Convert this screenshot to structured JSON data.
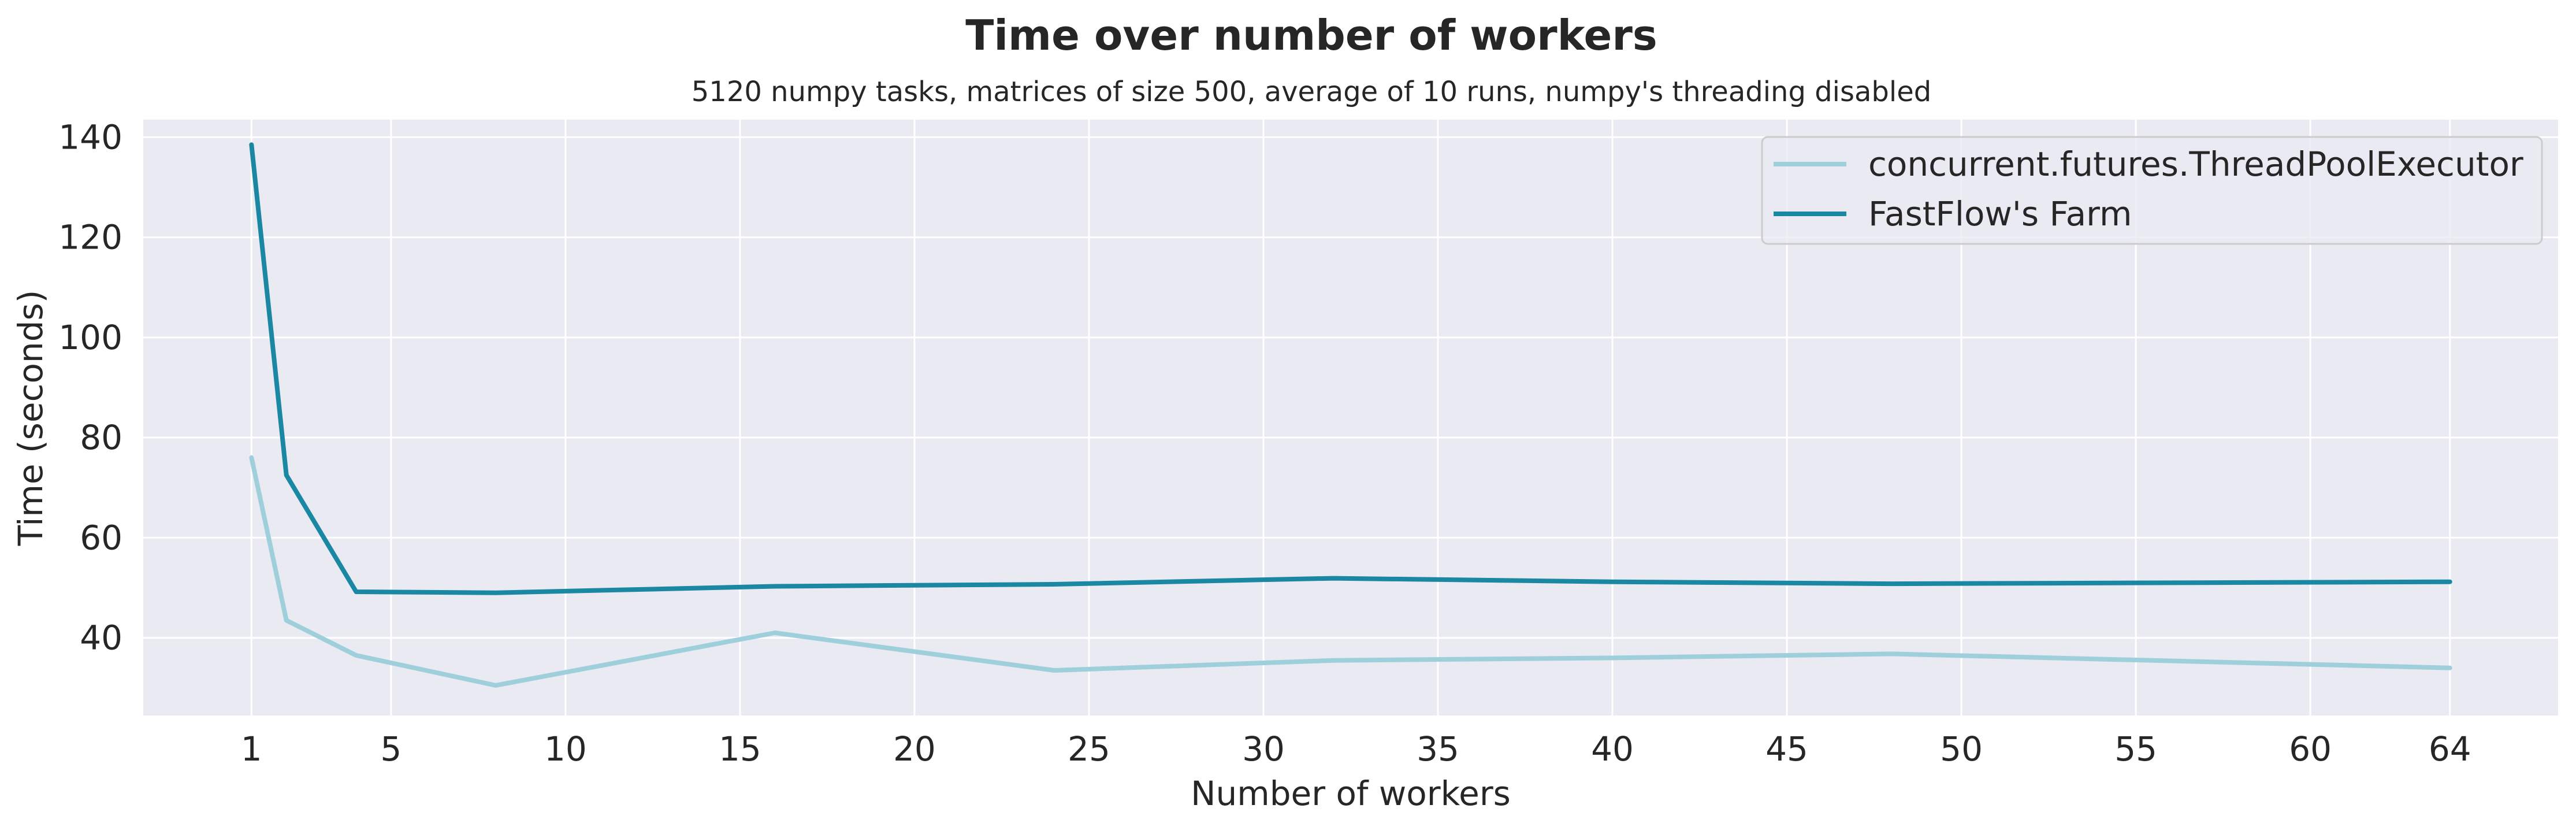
{
  "chart_data": {
    "type": "line",
    "title": "Time over number of workers",
    "subtitle": "5120 numpy tasks, matrices of size 500, average of 10 runs, numpy's threading disabled",
    "xlabel": "Number of workers",
    "ylabel": "Time (seconds)",
    "xlim": [
      -2.1,
      67.1
    ],
    "ylim": [
      24.5,
      143.5
    ],
    "xticks": [
      1,
      5,
      10,
      15,
      20,
      25,
      30,
      35,
      40,
      45,
      50,
      55,
      60,
      64
    ],
    "yticks": [
      40,
      60,
      80,
      100,
      120,
      140
    ],
    "grid": true,
    "legend_position": "top-right",
    "x": [
      1,
      2,
      4,
      8,
      16,
      24,
      32,
      40,
      48,
      64
    ],
    "series": [
      {
        "name": "concurrent.futures.ThreadPoolExecutor",
        "color": "#9ecfdb",
        "values": [
          76,
          43.5,
          36.5,
          30.5,
          41,
          33.5,
          35.5,
          36,
          36.8,
          34
        ]
      },
      {
        "name": "FastFlow's Farm",
        "color": "#1a87a3",
        "values": [
          138.5,
          72.5,
          49.2,
          49,
          50.3,
          50.7,
          51.9,
          51.2,
          50.8,
          51.2
        ]
      }
    ],
    "background_color": "#eaeaf2",
    "grid_color": "#ffffff"
  }
}
